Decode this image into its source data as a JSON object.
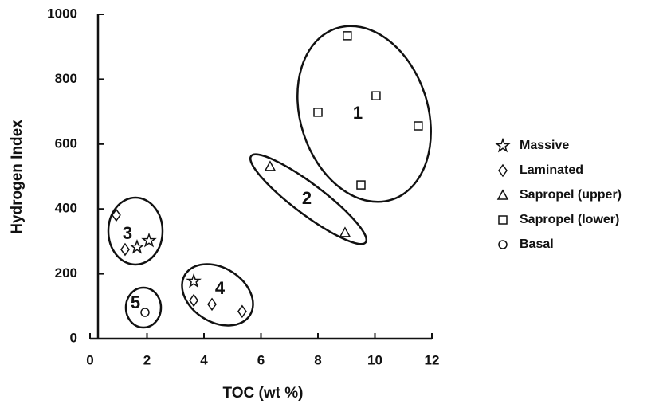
{
  "chart_data": {
    "type": "scatter",
    "x_label": "TOC (wt %)",
    "y_label": "Hydrogen Index",
    "xlim": [
      0,
      12
    ],
    "xticks": [
      0,
      2,
      4,
      6,
      8,
      10,
      12
    ],
    "ylim": [
      0,
      1000
    ],
    "yticks": [
      0,
      200,
      400,
      600,
      800,
      1000
    ],
    "series": [
      {
        "name": "Massive",
        "marker": "star",
        "color": "#111111",
        "x": [
          3.64,
          1.65,
          2.07
        ],
        "values": [
          177,
          282,
          302
        ]
      },
      {
        "name": "Laminated",
        "marker": "diamond",
        "color": "#111111",
        "x": [
          0.92,
          1.23,
          3.64,
          4.28,
          5.34
        ],
        "values": [
          381,
          275,
          118,
          106,
          84
        ]
      },
      {
        "name": "Sapropel (upper)",
        "marker": "triangle",
        "color": "#111111",
        "x": [
          6.32,
          8.95
        ],
        "values": [
          531,
          327
        ]
      },
      {
        "name": "Sapropel (lower)",
        "marker": "square",
        "color": "#111111",
        "x": [
          9.03,
          8.0,
          10.04,
          11.52,
          9.51
        ],
        "values": [
          934,
          698,
          749,
          656,
          474
        ]
      },
      {
        "name": "Basal",
        "marker": "circle",
        "color": "#111111",
        "x": [
          1.93
        ],
        "values": [
          81
        ]
      }
    ],
    "annotations": [
      "1",
      "2",
      "3",
      "4",
      "5"
    ]
  }
}
